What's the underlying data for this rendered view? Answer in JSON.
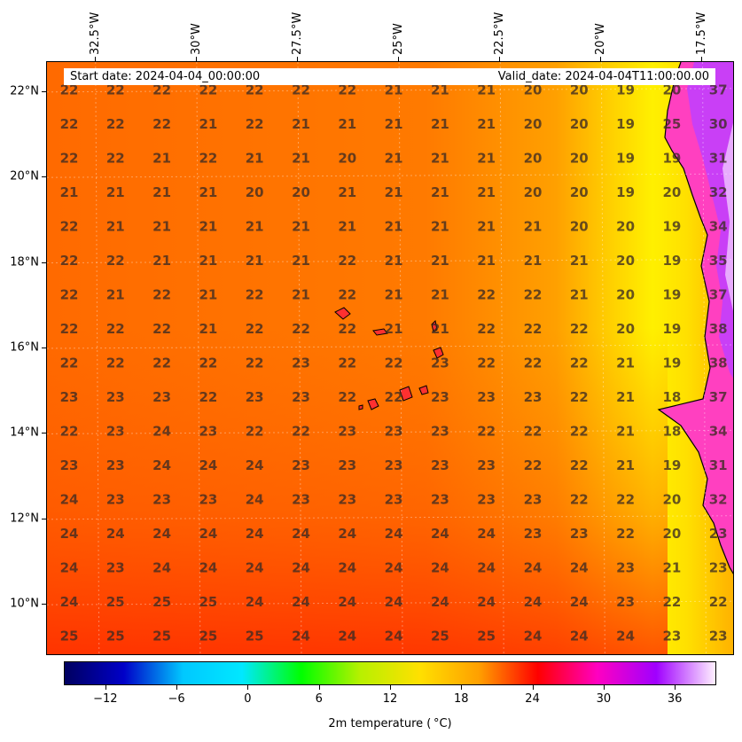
{
  "map": {
    "start_date": "Start date: 2024-04-04_00:00:00",
    "valid_date": "Valid_date: 2024-04-04T11:00:00.00",
    "lon_range": [
      -33.7,
      -16.7
    ],
    "lat_range": [
      8.8,
      22.7
    ],
    "lon_labels": [
      "32.5°W",
      "30°W",
      "27.5°W",
      "25°W",
      "22.5°W",
      "20°W",
      "17.5°W"
    ],
    "lon_values": [
      -32.5,
      -30,
      -27.5,
      -25,
      -22.5,
      -20,
      -17.5
    ],
    "lat_labels": [
      "22°N",
      "20°N",
      "18°N",
      "16°N",
      "14°N",
      "12°N",
      "10°N"
    ],
    "lat_values": [
      22,
      20,
      18,
      16,
      14,
      12,
      10
    ],
    "grid_values": [
      [
        "22",
        "22",
        "22",
        "22",
        "22",
        "22",
        "22",
        "21",
        "21",
        "21",
        "20",
        "20",
        "19",
        "20",
        "37"
      ],
      [
        "22",
        "22",
        "22",
        "21",
        "22",
        "21",
        "21",
        "21",
        "21",
        "21",
        "20",
        "20",
        "19",
        "25",
        "30"
      ],
      [
        "22",
        "22",
        "21",
        "22",
        "21",
        "21",
        "20",
        "21",
        "21",
        "21",
        "20",
        "20",
        "19",
        "19",
        "31"
      ],
      [
        "21",
        "21",
        "21",
        "21",
        "20",
        "20",
        "21",
        "21",
        "21",
        "21",
        "20",
        "20",
        "19",
        "20",
        "32"
      ],
      [
        "22",
        "21",
        "21",
        "21",
        "21",
        "21",
        "21",
        "21",
        "21",
        "21",
        "21",
        "20",
        "20",
        "19",
        "34"
      ],
      [
        "22",
        "22",
        "21",
        "21",
        "21",
        "21",
        "22",
        "21",
        "21",
        "21",
        "21",
        "21",
        "20",
        "19",
        "35"
      ],
      [
        "22",
        "21",
        "22",
        "21",
        "22",
        "21",
        "22",
        "21",
        "21",
        "22",
        "22",
        "21",
        "20",
        "19",
        "37"
      ],
      [
        "22",
        "22",
        "22",
        "21",
        "22",
        "22",
        "22",
        "21",
        "21",
        "22",
        "22",
        "22",
        "20",
        "19",
        "38"
      ],
      [
        "22",
        "22",
        "22",
        "22",
        "22",
        "23",
        "22",
        "22",
        "23",
        "22",
        "22",
        "22",
        "21",
        "19",
        "38"
      ],
      [
        "23",
        "23",
        "23",
        "22",
        "23",
        "23",
        "22",
        "22",
        "23",
        "23",
        "23",
        "22",
        "21",
        "18",
        "37"
      ],
      [
        "22",
        "23",
        "24",
        "23",
        "22",
        "22",
        "23",
        "23",
        "23",
        "22",
        "22",
        "22",
        "21",
        "18",
        "34"
      ],
      [
        "23",
        "23",
        "24",
        "24",
        "24",
        "23",
        "23",
        "23",
        "23",
        "23",
        "22",
        "22",
        "21",
        "19",
        "31"
      ],
      [
        "24",
        "23",
        "23",
        "23",
        "24",
        "23",
        "23",
        "23",
        "23",
        "23",
        "23",
        "22",
        "22",
        "20",
        "32"
      ],
      [
        "24",
        "24",
        "24",
        "24",
        "24",
        "24",
        "24",
        "24",
        "24",
        "24",
        "23",
        "23",
        "22",
        "20",
        "23"
      ],
      [
        "24",
        "23",
        "24",
        "24",
        "24",
        "24",
        "24",
        "24",
        "24",
        "24",
        "24",
        "24",
        "23",
        "21",
        "23"
      ],
      [
        "24",
        "25",
        "25",
        "25",
        "24",
        "24",
        "24",
        "24",
        "24",
        "24",
        "24",
        "24",
        "23",
        "22",
        "22"
      ],
      [
        "25",
        "25",
        "25",
        "25",
        "25",
        "24",
        "24",
        "24",
        "25",
        "25",
        "24",
        "24",
        "24",
        "23",
        "23"
      ]
    ]
  },
  "colorbar": {
    "title": "2m temperature ($^\\circ$C)",
    "range": [
      -15.5,
      39.5
    ],
    "tick_labels": [
      "−12",
      "−6",
      "0",
      "6",
      "12",
      "18",
      "24",
      "30",
      "36"
    ],
    "tick_values": [
      -12,
      -6,
      0,
      6,
      12,
      18,
      24,
      30,
      36
    ],
    "colors": [
      "#000060",
      "#0000c8",
      "#00c8ff",
      "#00e8ff",
      "#00ff00",
      "#b8f000",
      "#ffe000",
      "#ffa000",
      "#ff0000",
      "#ff00c0",
      "#a000ff",
      "#fff0ff"
    ]
  }
}
